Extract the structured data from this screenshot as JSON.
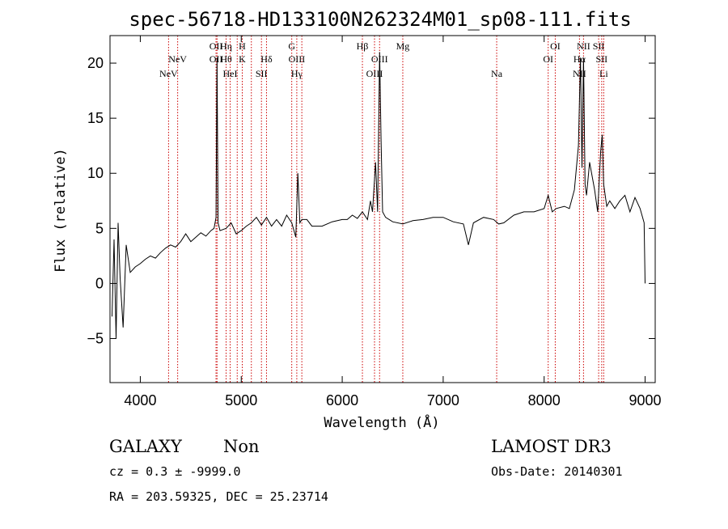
{
  "chart_data": {
    "type": "line",
    "title": "spec-56718-HD133100N262324M01_sp08-111.fits",
    "xlabel": "Wavelength (Å)",
    "ylabel": "Flux (relative)",
    "xlim": [
      3700,
      9100
    ],
    "ylim": [
      -9,
      22.5
    ],
    "x_ticks": [
      4000,
      5000,
      6000,
      7000,
      8000,
      9000
    ],
    "y_ticks": [
      -5,
      0,
      5,
      10,
      15,
      20
    ],
    "grid": false,
    "line_color": "#000000",
    "marker_color": "#cc0000",
    "series": [
      {
        "x": [
          3720,
          3740,
          3760,
          3780,
          3800,
          3830,
          3860,
          3900,
          3950,
          4000,
          4050,
          4100,
          4150,
          4200,
          4250,
          4300,
          4350,
          4400,
          4450,
          4500,
          4550,
          4600,
          4650,
          4700,
          4730,
          4750,
          4760,
          4770,
          4790,
          4850,
          4900,
          4950,
          5000,
          5050,
          5100,
          5150,
          5200,
          5250,
          5300,
          5350,
          5400,
          5450,
          5500,
          5540,
          5560,
          5580,
          5600,
          5650,
          5700,
          5800,
          5900,
          6000,
          6050,
          6100,
          6150,
          6200,
          6250,
          6280,
          6300,
          6330,
          6350,
          6370,
          6385,
          6400,
          6430,
          6500,
          6600,
          6700,
          6800,
          6900,
          7000,
          7100,
          7200,
          7250,
          7300,
          7400,
          7500,
          7550,
          7600,
          7700,
          7800,
          7900,
          8000,
          8040,
          8080,
          8120,
          8200,
          8250,
          8300,
          8340,
          8360,
          8375,
          8390,
          8405,
          8420,
          8450,
          8500,
          8530,
          8560,
          8575,
          8590,
          8620,
          8650,
          8700,
          8750,
          8800,
          8850,
          8900,
          8950,
          8990,
          9000
        ],
        "y": [
          -3,
          4,
          -5,
          5.5,
          0.5,
          -4,
          3.5,
          1,
          1.5,
          1.8,
          2.2,
          2.5,
          2.3,
          2.8,
          3.2,
          3.5,
          3.3,
          3.8,
          4.5,
          3.8,
          4.2,
          4.6,
          4.3,
          4.8,
          5,
          6,
          20.5,
          5.5,
          4.8,
          5,
          5.5,
          4.5,
          4.8,
          5.2,
          5.5,
          6,
          5.3,
          6,
          5.2,
          5.8,
          5.2,
          6.2,
          5.5,
          4.2,
          10,
          5.5,
          5.8,
          5.8,
          5.2,
          5.2,
          5.6,
          5.8,
          5.8,
          6.2,
          5.9,
          6.5,
          5.8,
          7.5,
          6.5,
          11,
          6.5,
          21,
          13,
          6.5,
          6,
          5.6,
          5.4,
          5.7,
          5.8,
          6,
          6,
          5.6,
          5.4,
          3.5,
          5.5,
          6,
          5.8,
          5.4,
          5.5,
          6.2,
          6.5,
          6.5,
          6.8,
          8,
          6.5,
          6.8,
          7,
          6.8,
          8.5,
          12.5,
          20.5,
          10.5,
          20.5,
          9,
          8,
          11,
          8.5,
          6.5,
          12,
          13.5,
          9,
          7,
          7.5,
          6.8,
          7.5,
          8,
          6.5,
          7.8,
          6.8,
          5.5,
          0
        ]
      }
    ],
    "line_markers": [
      {
        "x": 4280,
        "labels": [
          "NeV"
        ],
        "row": 2
      },
      {
        "x": 4370,
        "labels": [
          "NeV"
        ],
        "row": 1
      },
      {
        "x": 4750,
        "labels": [
          "OII",
          "OII"
        ],
        "row": 0
      },
      {
        "x": 4760,
        "labels": [],
        "row": 0
      },
      {
        "x": 4850,
        "labels": [
          "Hη",
          "Hθ"
        ],
        "row": 0
      },
      {
        "x": 4890,
        "labels": [
          "HeI"
        ],
        "row": 2
      },
      {
        "x": 4960,
        "labels": [],
        "row": 0
      },
      {
        "x": 5010,
        "labels": [
          "H",
          "K"
        ],
        "row": 0
      },
      {
        "x": 5100,
        "labels": [],
        "row": 0
      },
      {
        "x": 5200,
        "labels": [
          "SII"
        ],
        "row": 2
      },
      {
        "x": 5250,
        "labels": [
          "Hδ"
        ],
        "row": 1
      },
      {
        "x": 5500,
        "labels": [
          "G"
        ],
        "row": 0
      },
      {
        "x": 5550,
        "labels": [
          "OIII",
          "Hγ"
        ],
        "row": 1
      },
      {
        "x": 5600,
        "labels": [],
        "row": 0
      },
      {
        "x": 6200,
        "labels": [
          "Hβ"
        ],
        "row": 0
      },
      {
        "x": 6320,
        "labels": [
          "OIII"
        ],
        "row": 2
      },
      {
        "x": 6370,
        "labels": [
          "OIII"
        ],
        "row": 1
      },
      {
        "x": 6600,
        "labels": [
          "Mg"
        ],
        "row": 0
      },
      {
        "x": 7530,
        "labels": [
          "Na"
        ],
        "row": 2
      },
      {
        "x": 8040,
        "labels": [
          "OI"
        ],
        "row": 1
      },
      {
        "x": 8110,
        "labels": [
          "OI"
        ],
        "row": 0
      },
      {
        "x": 8350,
        "labels": [
          "Hα",
          "NII"
        ],
        "row": 1
      },
      {
        "x": 8390,
        "labels": [
          "NII"
        ],
        "row": 0
      },
      {
        "x": 8540,
        "labels": [
          "SII"
        ],
        "row": 0
      },
      {
        "x": 8570,
        "labels": [
          "SII"
        ],
        "row": 1
      },
      {
        "x": 8590,
        "labels": [
          "Li"
        ],
        "row": 2
      }
    ],
    "annotations": {
      "class": "GALAXY",
      "subclass": "Non",
      "survey": "LAMOST DR3",
      "cz": "cz = 0.3 ± -9999.0",
      "obs_date": "Obs-Date: 20140301",
      "radec": "RA = 203.59325, DEC =  25.23714"
    }
  }
}
